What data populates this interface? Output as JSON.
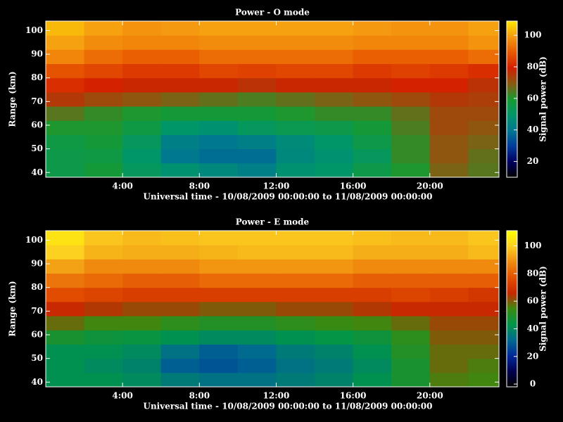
{
  "chart_data": [
    {
      "type": "heatmap",
      "title": "Power - O mode",
      "xlabel": "Universal time - 10/08/2009 00:00:00 to 11/08/2009 00:00:00",
      "ylabel": "Range (km)",
      "colorbar_label": "Signal power (dB)",
      "xlim": [
        0,
        23.6
      ],
      "ylim": [
        38,
        104
      ],
      "xticks": [
        {
          "value": 4,
          "label": "4:00"
        },
        {
          "value": 8,
          "label": "8:00"
        },
        {
          "value": 12,
          "label": "12:00"
        },
        {
          "value": 16,
          "label": "16:00"
        },
        {
          "value": 20,
          "label": "20:00"
        }
      ],
      "yticks": [
        40,
        50,
        60,
        70,
        80,
        90,
        100
      ],
      "xbins": [
        0,
        2,
        4,
        6,
        8,
        10,
        12,
        14,
        16,
        18,
        20,
        22,
        23.6
      ],
      "ybins": [
        38,
        44,
        50,
        56,
        62,
        68,
        74,
        80,
        86,
        92,
        98,
        104
      ],
      "values": [
        [
          55,
          58,
          52,
          48,
          45,
          42,
          48,
          50,
          55,
          60,
          68,
          65
        ],
        [
          55,
          56,
          50,
          40,
          38,
          38,
          45,
          48,
          52,
          62,
          70,
          66
        ],
        [
          56,
          58,
          52,
          42,
          40,
          42,
          46,
          50,
          55,
          62,
          70,
          68
        ],
        [
          60,
          60,
          56,
          50,
          48,
          52,
          54,
          55,
          58,
          64,
          72,
          70
        ],
        [
          65,
          62,
          60,
          58,
          58,
          58,
          60,
          62,
          62,
          66,
          72,
          72
        ],
        [
          75,
          72,
          70,
          68,
          66,
          64,
          66,
          68,
          70,
          72,
          75,
          74
        ],
        [
          82,
          80,
          78,
          78,
          78,
          76,
          78,
          78,
          78,
          80,
          80,
          76
        ],
        [
          88,
          86,
          84,
          84,
          86,
          85,
          86,
          86,
          84,
          85,
          84,
          82
        ],
        [
          96,
          92,
          90,
          90,
          92,
          92,
          92,
          92,
          90,
          90,
          90,
          92
        ],
        [
          100,
          97,
          96,
          96,
          97,
          97,
          97,
          97,
          96,
          96,
          96,
          98
        ],
        [
          103,
          100,
          98,
          99,
          100,
          100,
          100,
          100,
          99,
          98,
          98,
          100
        ]
      ],
      "clim": [
        10,
        109
      ],
      "cticks": [
        20,
        40,
        60,
        80,
        100
      ],
      "colormap": [
        "#000000",
        "#000060",
        "#003c9c",
        "#007890",
        "#00966a",
        "#189a30",
        "#8a5a10",
        "#d21e00",
        "#e85a00",
        "#f59a10",
        "#ffe800"
      ]
    },
    {
      "type": "heatmap",
      "title": "Power - E mode",
      "xlabel": "Universal time - 10/08/2009 00:00:00 to 11/08/2009 00:00:00",
      "ylabel": "Range (km)",
      "colorbar_label": "Signal power (dB)",
      "xlim": [
        0,
        23.6
      ],
      "ylim": [
        38,
        104
      ],
      "xticks": [
        {
          "value": 4,
          "label": "4:00"
        },
        {
          "value": 8,
          "label": "8:00"
        },
        {
          "value": 12,
          "label": "12:00"
        },
        {
          "value": 16,
          "label": "16:00"
        },
        {
          "value": 20,
          "label": "20:00"
        }
      ],
      "yticks": [
        40,
        50,
        60,
        70,
        80,
        90,
        100
      ],
      "xbins": [
        0,
        2,
        4,
        6,
        8,
        10,
        12,
        14,
        16,
        18,
        20,
        22,
        23.6
      ],
      "ybins": [
        38,
        44,
        50,
        56,
        62,
        68,
        74,
        80,
        86,
        92,
        98,
        104
      ],
      "values": [
        [
          42,
          42,
          40,
          36,
          34,
          34,
          36,
          38,
          42,
          48,
          56,
          55
        ],
        [
          42,
          40,
          38,
          30,
          28,
          30,
          34,
          36,
          40,
          48,
          58,
          56
        ],
        [
          42,
          42,
          40,
          34,
          30,
          32,
          36,
          38,
          42,
          50,
          58,
          58
        ],
        [
          48,
          46,
          45,
          42,
          40,
          40,
          42,
          44,
          46,
          52,
          60,
          60
        ],
        [
          58,
          55,
          55,
          52,
          50,
          50,
          52,
          54,
          55,
          58,
          62,
          62
        ],
        [
          66,
          64,
          62,
          62,
          60,
          60,
          62,
          62,
          64,
          66,
          66,
          66
        ],
        [
          76,
          74,
          72,
          72,
          72,
          72,
          72,
          72,
          72,
          74,
          72,
          70
        ],
        [
          84,
          82,
          80,
          80,
          82,
          82,
          82,
          82,
          80,
          80,
          80,
          80
        ],
        [
          92,
          88,
          88,
          88,
          90,
          90,
          90,
          90,
          88,
          88,
          88,
          88
        ],
        [
          100,
          95,
          94,
          94,
          95,
          96,
          96,
          96,
          94,
          94,
          94,
          96
        ],
        [
          104,
          98,
          96,
          97,
          98,
          98,
          98,
          98,
          97,
          96,
          96,
          98
        ]
      ],
      "clim": [
        -2,
        111
      ],
      "cticks": [
        0,
        20,
        40,
        60,
        80,
        100
      ],
      "colormap": [
        "#000000",
        "#000050",
        "#002a9a",
        "#006a90",
        "#00964a",
        "#3a8a10",
        "#c82800",
        "#e45000",
        "#f08c10",
        "#fcd020",
        "#ffff00"
      ]
    }
  ]
}
